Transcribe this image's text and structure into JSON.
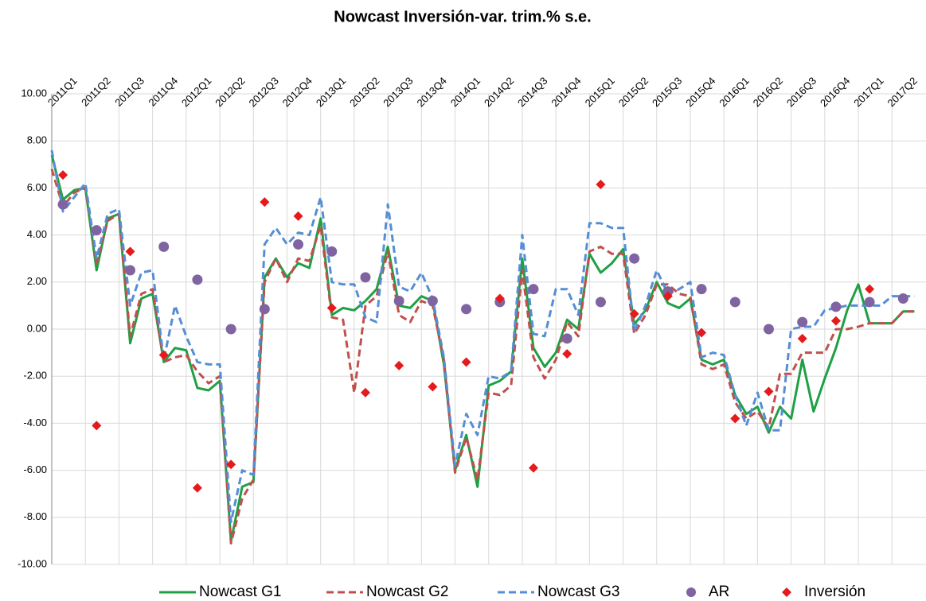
{
  "chart_data": {
    "type": "line",
    "title": "Nowcast Inversión-var. trim.% s.e.",
    "categories": [
      "2011Q1",
      null,
      null,
      "2011Q2",
      null,
      null,
      "2011Q3",
      null,
      null,
      "2011Q4",
      null,
      null,
      "2012Q1",
      null,
      null,
      "2012Q2",
      null,
      null,
      "2012Q3",
      null,
      null,
      "2012Q4",
      null,
      null,
      "2013Q1",
      null,
      null,
      "2013Q2",
      null,
      null,
      "2013Q3",
      null,
      null,
      "2013Q4",
      null,
      null,
      "2014Q1",
      null,
      null,
      "2014Q2",
      null,
      null,
      "2014Q3",
      null,
      null,
      "2014Q4",
      null,
      null,
      "2015Q1",
      null,
      null,
      "2015Q2",
      null,
      null,
      "2015Q3",
      null,
      null,
      "2015Q4",
      null,
      null,
      "2016Q1",
      null,
      null,
      "2016Q2",
      null,
      null,
      "2016Q3",
      null,
      null,
      "2016Q4",
      null,
      null,
      "2017Q1",
      null,
      null,
      "2017Q2",
      null,
      null
    ],
    "ylim": [
      -10,
      10
    ],
    "yticks": [
      {
        "value": 10,
        "label": "10.00"
      },
      {
        "value": 8,
        "label": "8.00"
      },
      {
        "value": 6,
        "label": "6.00"
      },
      {
        "value": 4,
        "label": "4.00"
      },
      {
        "value": 2,
        "label": "2.00"
      },
      {
        "value": 0,
        "label": "0.00"
      },
      {
        "value": -2,
        "label": "-2.00"
      },
      {
        "value": -4,
        "label": "-4.00"
      },
      {
        "value": -6,
        "label": "-6.00"
      },
      {
        "value": -8,
        "label": "-8.00"
      },
      {
        "value": -10,
        "label": "-10.00"
      }
    ],
    "grid": true,
    "legend": "bottom",
    "series": [
      {
        "name": "Nowcast G1",
        "color": "#1fa045",
        "style": "solid",
        "values": [
          7.4,
          5.5,
          5.9,
          6.0,
          2.5,
          4.7,
          4.9,
          -0.6,
          1.3,
          1.5,
          -1.4,
          -0.8,
          -0.9,
          -2.5,
          -2.6,
          -2.2,
          -9.0,
          -6.7,
          -6.5,
          2.2,
          3.0,
          2.2,
          2.8,
          2.6,
          4.7,
          0.6,
          0.9,
          0.8,
          1.2,
          1.7,
          3.5,
          1.0,
          0.9,
          1.4,
          1.2,
          -1.5,
          -6.0,
          -4.5,
          -6.7,
          -2.4,
          -2.2,
          -1.8,
          3.0,
          -0.8,
          -1.6,
          -1.0,
          0.4,
          0.0,
          3.2,
          2.4,
          2.8,
          3.4,
          0.2,
          0.8,
          2.0,
          1.1,
          0.9,
          1.3,
          -1.3,
          -1.5,
          -1.3,
          -2.8,
          -3.6,
          -3.3,
          -4.4,
          -3.3,
          -3.8,
          -1.3,
          -3.5,
          -2.1,
          -0.8,
          0.8,
          1.9,
          0.25,
          0.25,
          0.25,
          0.75,
          0.75
        ]
      },
      {
        "name": "Nowcast G2",
        "color": "#c0504d",
        "style": "dash",
        "values": [
          6.8,
          5.2,
          5.8,
          6.0,
          2.8,
          4.6,
          4.9,
          -0.3,
          1.5,
          1.7,
          -1.4,
          -1.2,
          -1.1,
          -1.8,
          -2.3,
          -2.0,
          -9.1,
          -7.2,
          -6.4,
          2.0,
          3.0,
          2.0,
          3.0,
          2.9,
          4.4,
          0.5,
          0.4,
          -2.7,
          1.0,
          1.4,
          3.3,
          0.6,
          0.3,
          1.2,
          1.0,
          -1.3,
          -6.1,
          -4.6,
          -6.4,
          -2.7,
          -2.8,
          -2.4,
          2.5,
          -1.2,
          -2.1,
          -1.3,
          0.3,
          -0.3,
          3.3,
          3.5,
          3.2,
          3.2,
          -0.2,
          0.6,
          1.9,
          1.9,
          1.5,
          1.4,
          -1.5,
          -1.7,
          -1.5,
          -3.1,
          -3.8,
          -3.5,
          -4.2,
          -1.9,
          -1.9,
          -1.0,
          -1.0,
          -1.0,
          0.0,
          0.0,
          0.1,
          0.25,
          0.25,
          0.25,
          0.75,
          0.75
        ]
      },
      {
        "name": "Nowcast G3",
        "color": "#558ed5",
        "style": "dash",
        "values": [
          7.6,
          5.0,
          5.6,
          6.2,
          3.0,
          4.9,
          5.1,
          1.0,
          2.4,
          2.5,
          -1.3,
          1.0,
          -0.3,
          -1.4,
          -1.5,
          -1.5,
          -8.2,
          -6.0,
          -6.2,
          3.6,
          4.3,
          3.6,
          4.1,
          4.0,
          5.6,
          2.0,
          1.9,
          1.9,
          0.5,
          0.3,
          5.3,
          1.8,
          1.6,
          2.4,
          1.3,
          -1.2,
          -5.8,
          -3.6,
          -4.5,
          -2.0,
          -2.1,
          -1.8,
          4.0,
          -0.2,
          -0.3,
          1.7,
          1.7,
          0.6,
          4.5,
          4.5,
          4.3,
          4.3,
          -0.1,
          1.0,
          2.5,
          1.5,
          1.7,
          2.0,
          -1.2,
          -1.0,
          -1.1,
          -2.8,
          -4.1,
          -2.7,
          -4.3,
          -4.3,
          0.0,
          0.1,
          0.1,
          0.8,
          0.9,
          1.0,
          1.0,
          1.0,
          1.0,
          1.4,
          1.4,
          1.4
        ]
      },
      {
        "name": "AR",
        "color": "#8064a2",
        "marker": "circle",
        "values": [
          null,
          5.3,
          null,
          null,
          4.2,
          null,
          null,
          2.5,
          null,
          null,
          3.5,
          null,
          null,
          2.1,
          null,
          null,
          0.0,
          null,
          null,
          0.85,
          null,
          null,
          3.6,
          null,
          null,
          3.3,
          null,
          null,
          2.2,
          null,
          null,
          1.2,
          null,
          null,
          1.2,
          null,
          null,
          0.85,
          null,
          null,
          1.15,
          null,
          null,
          1.7,
          null,
          null,
          -0.4,
          null,
          null,
          1.15,
          null,
          null,
          3.0,
          null,
          null,
          1.6,
          null,
          null,
          1.7,
          null,
          null,
          1.15,
          null,
          null,
          0.0,
          null,
          null,
          0.3,
          null,
          null,
          0.95,
          null,
          null,
          1.15,
          null,
          null,
          1.3,
          null
        ]
      },
      {
        "name": "Inversión",
        "color": "#e41a1c",
        "marker": "diamond",
        "values": [
          null,
          6.55,
          null,
          null,
          -4.1,
          null,
          null,
          3.3,
          null,
          null,
          -1.1,
          null,
          null,
          -6.75,
          null,
          null,
          -5.75,
          null,
          null,
          5.4,
          null,
          null,
          4.8,
          null,
          null,
          0.9,
          null,
          null,
          -2.7,
          null,
          null,
          -1.55,
          null,
          null,
          -2.45,
          null,
          null,
          -1.4,
          null,
          null,
          1.3,
          null,
          null,
          -5.9,
          null,
          null,
          -1.05,
          null,
          null,
          6.15,
          null,
          null,
          0.65,
          null,
          null,
          1.4,
          null,
          null,
          -0.15,
          null,
          null,
          -3.8,
          null,
          null,
          -2.65,
          null,
          null,
          -0.4,
          null,
          null,
          0.35,
          null,
          null,
          1.7,
          null,
          null,
          null,
          null
        ]
      }
    ]
  }
}
